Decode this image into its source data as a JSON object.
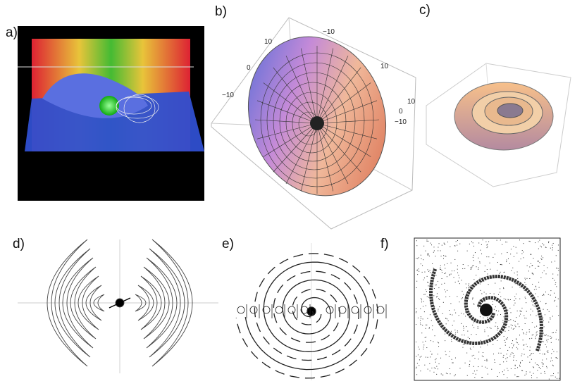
{
  "panels": [
    {
      "label": "a)"
    },
    {
      "label": "b)"
    },
    {
      "label": "c)"
    },
    {
      "label": "d)"
    },
    {
      "label": "e)"
    },
    {
      "label": "f)"
    }
  ],
  "panel_b_ticks": [
    "−10",
    "10",
    "0",
    "−10",
    "10",
    "10",
    "0",
    "−10"
  ]
}
